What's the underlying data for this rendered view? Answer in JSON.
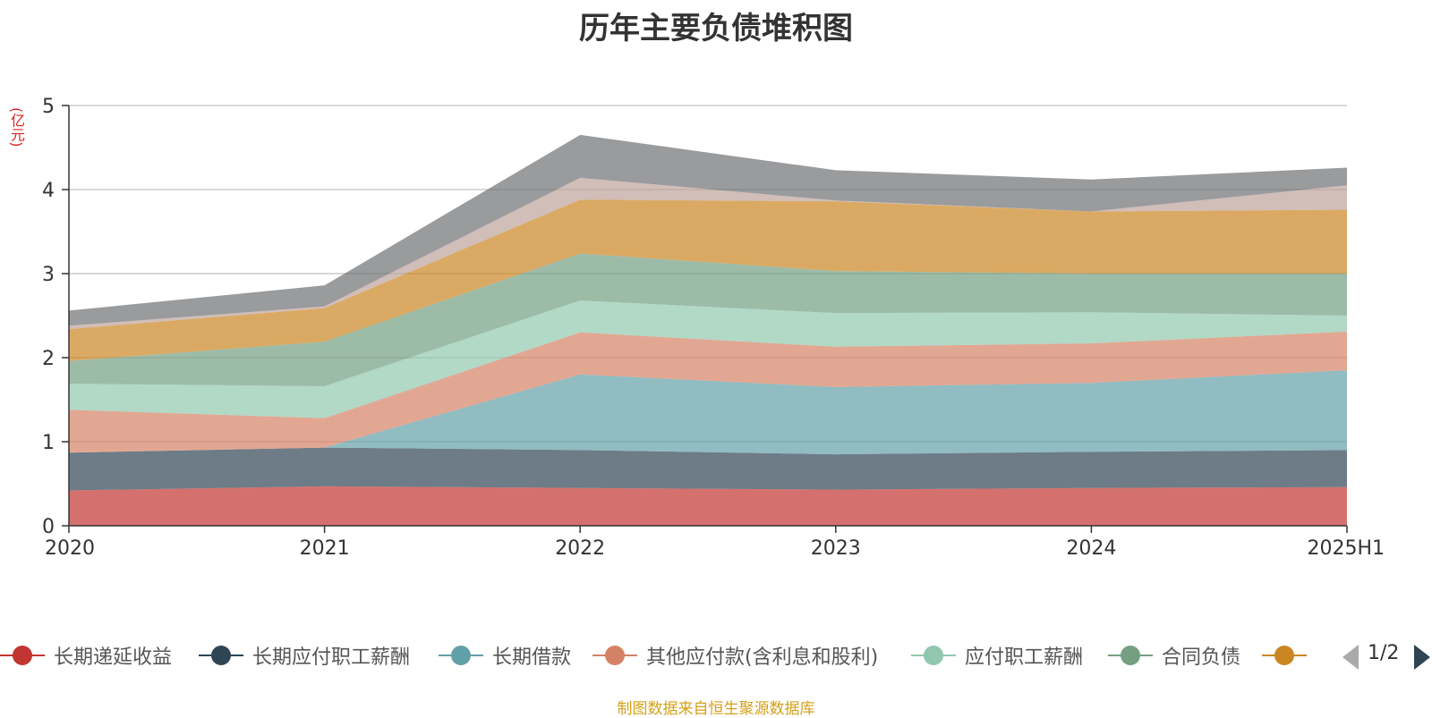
{
  "chart_data": {
    "type": "area",
    "title": "历年主要负债堆积图",
    "ylabel": "(亿元)",
    "x": [
      "2020",
      "2021",
      "2022",
      "2023",
      "2024",
      "2025H1"
    ],
    "ylim": [
      0,
      5
    ],
    "yticks": [
      0,
      1,
      2,
      3,
      4,
      5
    ],
    "grid": true,
    "stacked": true,
    "legend_position": "bottom",
    "series": [
      {
        "name": "长期递延收益",
        "color": "#c23531",
        "values": [
          0.42,
          0.47,
          0.45,
          0.43,
          0.45,
          0.46
        ]
      },
      {
        "name": "长期应付职工薪酬",
        "color": "#2f4554",
        "values": [
          0.45,
          0.46,
          0.45,
          0.42,
          0.43,
          0.44
        ]
      },
      {
        "name": "长期借款",
        "color": "#61a0a8",
        "values": [
          0.0,
          0.0,
          0.9,
          0.8,
          0.82,
          0.95
        ]
      },
      {
        "name": "其他应付款(含利息和股利)",
        "color": "#d48265",
        "values": [
          0.51,
          0.35,
          0.5,
          0.48,
          0.47,
          0.46
        ]
      },
      {
        "name": "应付职工薪酬",
        "color": "#91c7ae",
        "values": [
          0.31,
          0.38,
          0.38,
          0.4,
          0.37,
          0.19
        ]
      },
      {
        "name": "合同负债",
        "color": "#749f83",
        "values": [
          0.27,
          0.53,
          0.56,
          0.5,
          0.46,
          0.5
        ]
      },
      {
        "name": "",
        "color": "#ca8622",
        "values": [
          0.38,
          0.4,
          0.64,
          0.83,
          0.74,
          0.76
        ]
      },
      {
        "name": "",
        "color": "#bda29a",
        "values": [
          0.04,
          0.02,
          0.26,
          0.01,
          0.0,
          0.29
        ]
      },
      {
        "name": "",
        "color": "#6e7074",
        "values": [
          0.18,
          0.25,
          0.51,
          0.36,
          0.38,
          0.21
        ]
      }
    ]
  },
  "legend": {
    "items": [
      {
        "label": "长期递延收益",
        "color": "#c23531"
      },
      {
        "label": "长期应付职工薪酬",
        "color": "#2f4554"
      },
      {
        "label": "长期借款",
        "color": "#61a0a8"
      },
      {
        "label": "其他应付款(含利息和股利)",
        "color": "#d48265"
      },
      {
        "label": "应付职工薪酬",
        "color": "#91c7ae"
      },
      {
        "label": "合同负债",
        "color": "#749f83"
      },
      {
        "label": "",
        "color": "#ca8622"
      }
    ],
    "page_text": "1/2"
  },
  "source_note": "制图数据来自恒生聚源数据库"
}
